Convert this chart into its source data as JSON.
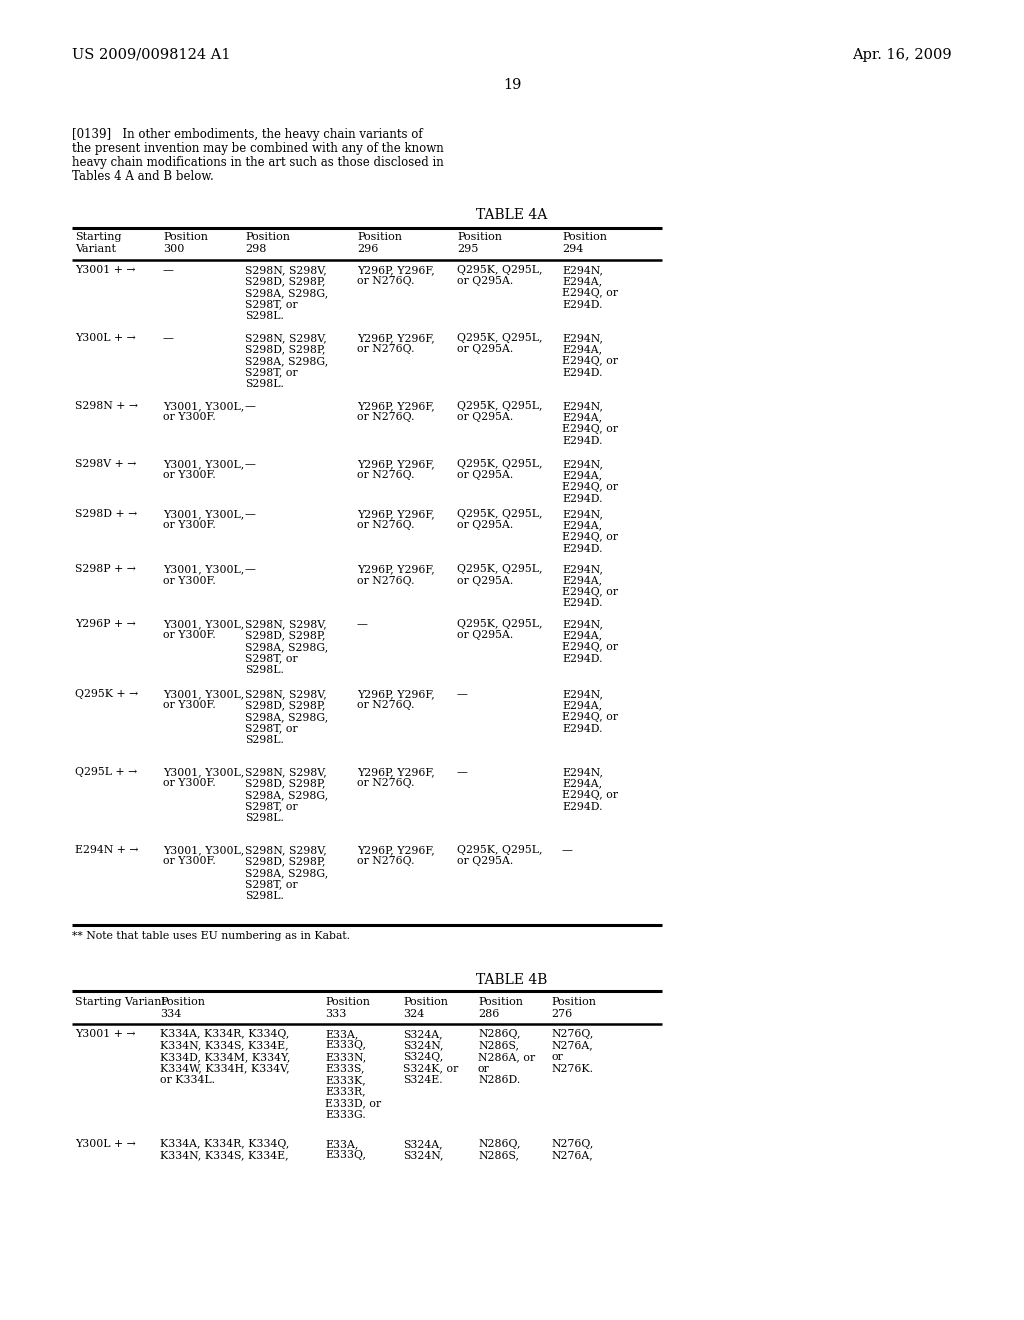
{
  "header_left": "US 2009/0098124 A1",
  "header_right": "Apr. 16, 2009",
  "page_number": "19",
  "para_line1": "[0139]   In other embodiments, the heavy chain variants of",
  "para_line2": "the present invention may be combined with any of the known",
  "para_line3": "heavy chain modifications in the art such as those disclosed in",
  "para_line4": "Tables 4 A and B below.",
  "table4a_title": "TABLE 4A",
  "table4a_col_headers": [
    [
      "Starting",
      "Variant"
    ],
    [
      "Position",
      "300"
    ],
    [
      "Position",
      "298"
    ],
    [
      "Position",
      "296"
    ],
    [
      "Position",
      "295"
    ],
    [
      "Position",
      "294"
    ]
  ],
  "table4a_rows": [
    [
      "Y3001 + →",
      "—",
      "S298N, S298V,\nS298D, S298P,\nS298A, S298G,\nS298T, or\nS298L.",
      "Y296P, Y296F,\nor N276Q.",
      "Q295K, Q295L,\nor Q295A.",
      "E294N,\nE294A,\nE294Q, or\nE294D."
    ],
    [
      "Y300L + →",
      "—",
      "S298N, S298V,\nS298D, S298P,\nS298A, S298G,\nS298T, or\nS298L.",
      "Y296P, Y296F,\nor N276Q.",
      "Q295K, Q295L,\nor Q295A.",
      "E294N,\nE294A,\nE294Q, or\nE294D."
    ],
    [
      "S298N + →",
      "Y3001, Y300L,\nor Y300F.",
      "—",
      "Y296P, Y296F,\nor N276Q.",
      "Q295K, Q295L,\nor Q295A.",
      "E294N,\nE294A,\nE294Q, or\nE294D."
    ],
    [
      "S298V + →",
      "Y3001, Y300L,\nor Y300F.",
      "—",
      "Y296P, Y296F,\nor N276Q.",
      "Q295K, Q295L,\nor Q295A.",
      "E294N,\nE294A,\nE294Q, or\nE294D."
    ],
    [
      "S298D + →",
      "Y3001, Y300L,\nor Y300F.",
      "—",
      "Y296P, Y296F,\nor N276Q.",
      "Q295K, Q295L,\nor Q295A.",
      "E294N,\nE294A,\nE294Q, or\nE294D."
    ],
    [
      "S298P + →",
      "Y3001, Y300L,\nor Y300F.",
      "—",
      "Y296P, Y296F,\nor N276Q.",
      "Q295K, Q295L,\nor Q295A.",
      "E294N,\nE294A,\nE294Q, or\nE294D."
    ],
    [
      "Y296P + →",
      "Y3001, Y300L,\nor Y300F.",
      "S298N, S298V,\nS298D, S298P,\nS298A, S298G,\nS298T, or\nS298L.",
      "—",
      "Q295K, Q295L,\nor Q295A.",
      "E294N,\nE294A,\nE294Q, or\nE294D."
    ],
    [
      "Q295K + →",
      "Y3001, Y300L,\nor Y300F.",
      "S298N, S298V,\nS298D, S298P,\nS298A, S298G,\nS298T, or\nS298L.",
      "Y296P, Y296F,\nor N276Q.",
      "—",
      "E294N,\nE294A,\nE294Q, or\nE294D."
    ],
    [
      "Q295L + →",
      "Y3001, Y300L,\nor Y300F.",
      "S298N, S298V,\nS298D, S298P,\nS298A, S298G,\nS298T, or\nS298L.",
      "Y296P, Y296F,\nor N276Q.",
      "—",
      "E294N,\nE294A,\nE294Q, or\nE294D."
    ],
    [
      "E294N + →",
      "Y3001, Y300L,\nor Y300F.",
      "S298N, S298V,\nS298D, S298P,\nS298A, S298G,\nS298T, or\nS298L.",
      "Y296P, Y296F,\nor N276Q.",
      "Q295K, Q295L,\nor Q295A.",
      "—"
    ]
  ],
  "table4a_footnote": "** Note that table uses EU numbering as in Kabat.",
  "table4b_title": "TABLE 4B",
  "table4b_col_headers": [
    [
      "Starting Variant",
      ""
    ],
    [
      "Position",
      "334"
    ],
    [
      "Position",
      "333"
    ],
    [
      "Position",
      "324"
    ],
    [
      "Position",
      "286"
    ],
    [
      "Position",
      "276"
    ]
  ],
  "table4b_rows": [
    [
      "Y3001 + →",
      "K334A, K334R, K334Q,\nK334N, K334S, K334E,\nK334D, K334M, K334Y,\nK334W, K334H, K334V,\nor K334L.",
      "E33A,\nE333Q,\nE333N,\nE333S,\nE333K,\nE333R,\nE333D, or\nE333G.",
      "S324A,\nS324N,\nS324Q,\nS324K, or\nS324E.",
      "N286Q,\nN286S,\nN286A, or\nor\nN286D.",
      "N276Q,\nN276A,\nor\nN276K."
    ],
    [
      "Y300L + →",
      "K334A, K334R, K334Q,\nK334N, K334S, K334E,",
      "E33A,\nE333Q,",
      "S324A,\nS324N,",
      "N286Q,\nN286S,",
      "N276Q,\nN276A,"
    ]
  ],
  "bg_color": "#ffffff",
  "text_color": "#000000"
}
